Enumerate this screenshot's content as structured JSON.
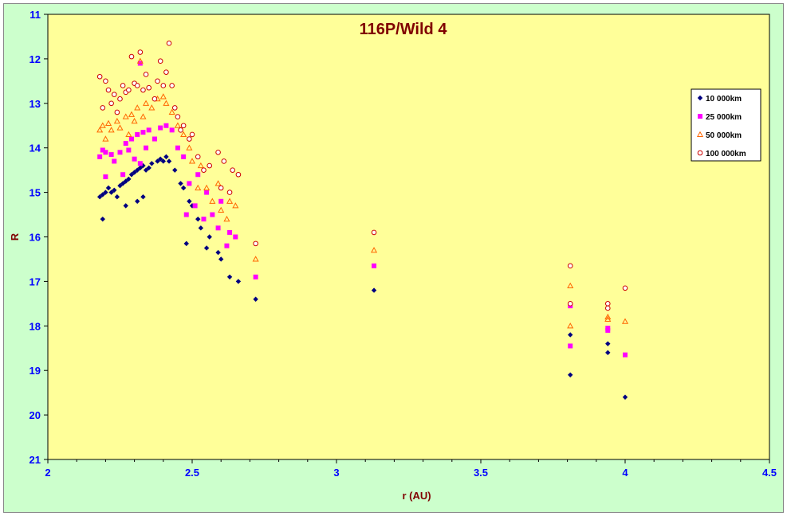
{
  "chart_data": {
    "type": "scatter",
    "title": "116P/Wild 4",
    "xlabel": "r (AU)",
    "ylabel": "R",
    "xlim": [
      2,
      4.5
    ],
    "ylim": [
      11,
      21
    ],
    "y_inverted": true,
    "x_ticks": [
      "2",
      "2.5",
      "3",
      "3.5",
      "4",
      "4.5"
    ],
    "y_ticks": [
      "11",
      "12",
      "13",
      "14",
      "15",
      "16",
      "17",
      "18",
      "19",
      "20",
      "21"
    ],
    "grid": false,
    "legend_position": "right",
    "plot_background": "#ffff99",
    "outer_background": "#ccffcc",
    "series": [
      {
        "name": "10 000km",
        "marker": "diamond",
        "color": "#000080",
        "points": [
          [
            2.18,
            15.1
          ],
          [
            2.19,
            15.05
          ],
          [
            2.2,
            15.0
          ],
          [
            2.19,
            15.6
          ],
          [
            2.21,
            14.9
          ],
          [
            2.22,
            15.0
          ],
          [
            2.23,
            14.95
          ],
          [
            2.24,
            15.1
          ],
          [
            2.25,
            14.85
          ],
          [
            2.26,
            14.8
          ],
          [
            2.27,
            15.3
          ],
          [
            2.27,
            14.75
          ],
          [
            2.28,
            14.7
          ],
          [
            2.29,
            14.6
          ],
          [
            2.3,
            14.55
          ],
          [
            2.31,
            15.2
          ],
          [
            2.31,
            14.5
          ],
          [
            2.32,
            14.45
          ],
          [
            2.33,
            15.1
          ],
          [
            2.33,
            14.4
          ],
          [
            2.34,
            14.5
          ],
          [
            2.35,
            14.45
          ],
          [
            2.36,
            14.35
          ],
          [
            2.38,
            14.3
          ],
          [
            2.39,
            14.25
          ],
          [
            2.4,
            14.3
          ],
          [
            2.41,
            14.2
          ],
          [
            2.42,
            14.3
          ],
          [
            2.44,
            14.5
          ],
          [
            2.46,
            14.8
          ],
          [
            2.47,
            14.9
          ],
          [
            2.48,
            16.15
          ],
          [
            2.49,
            15.2
          ],
          [
            2.5,
            15.3
          ],
          [
            2.52,
            15.6
          ],
          [
            2.53,
            15.8
          ],
          [
            2.55,
            16.25
          ],
          [
            2.56,
            16.0
          ],
          [
            2.59,
            16.35
          ],
          [
            2.6,
            16.5
          ],
          [
            2.63,
            16.9
          ],
          [
            2.66,
            17.0
          ],
          [
            2.72,
            17.4
          ],
          [
            3.13,
            17.2
          ],
          [
            3.81,
            18.2
          ],
          [
            3.81,
            19.1
          ],
          [
            3.94,
            18.4
          ],
          [
            3.94,
            18.6
          ],
          [
            4.0,
            19.6
          ]
        ]
      },
      {
        "name": "25 000km",
        "marker": "square",
        "color": "#ff00ff",
        "points": [
          [
            2.18,
            14.2
          ],
          [
            2.19,
            14.05
          ],
          [
            2.2,
            14.65
          ],
          [
            2.2,
            14.1
          ],
          [
            2.22,
            14.15
          ],
          [
            2.23,
            14.3
          ],
          [
            2.25,
            14.1
          ],
          [
            2.26,
            14.6
          ],
          [
            2.27,
            13.9
          ],
          [
            2.28,
            14.05
          ],
          [
            2.29,
            13.8
          ],
          [
            2.3,
            14.25
          ],
          [
            2.31,
            13.7
          ],
          [
            2.32,
            14.35
          ],
          [
            2.33,
            13.65
          ],
          [
            2.34,
            14.0
          ],
          [
            2.35,
            13.6
          ],
          [
            2.37,
            13.8
          ],
          [
            2.39,
            13.55
          ],
          [
            2.41,
            13.5
          ],
          [
            2.43,
            13.6
          ],
          [
            2.45,
            14.0
          ],
          [
            2.47,
            14.2
          ],
          [
            2.48,
            15.5
          ],
          [
            2.49,
            14.8
          ],
          [
            2.51,
            15.3
          ],
          [
            2.52,
            14.6
          ],
          [
            2.54,
            15.6
          ],
          [
            2.55,
            15.0
          ],
          [
            2.57,
            15.5
          ],
          [
            2.59,
            15.8
          ],
          [
            2.6,
            15.2
          ],
          [
            2.62,
            16.2
          ],
          [
            2.63,
            15.9
          ],
          [
            2.65,
            16.0
          ],
          [
            2.72,
            16.9
          ],
          [
            3.13,
            16.65
          ],
          [
            3.81,
            17.55
          ],
          [
            3.81,
            18.45
          ],
          [
            3.94,
            18.05
          ],
          [
            3.94,
            18.1
          ],
          [
            4.0,
            18.65
          ],
          [
            2.32,
            12.1
          ]
        ]
      },
      {
        "name": "50 000km",
        "marker": "triangle",
        "color": "#ff6600",
        "points": [
          [
            2.18,
            13.6
          ],
          [
            2.19,
            13.5
          ],
          [
            2.2,
            13.8
          ],
          [
            2.21,
            13.45
          ],
          [
            2.22,
            13.6
          ],
          [
            2.24,
            13.4
          ],
          [
            2.25,
            13.55
          ],
          [
            2.27,
            13.3
          ],
          [
            2.28,
            13.7
          ],
          [
            2.29,
            13.25
          ],
          [
            2.3,
            13.4
          ],
          [
            2.31,
            13.1
          ],
          [
            2.32,
            12.05
          ],
          [
            2.33,
            13.3
          ],
          [
            2.34,
            13.0
          ],
          [
            2.36,
            13.1
          ],
          [
            2.38,
            12.9
          ],
          [
            2.4,
            12.85
          ],
          [
            2.41,
            13.0
          ],
          [
            2.43,
            13.2
          ],
          [
            2.45,
            13.5
          ],
          [
            2.47,
            13.7
          ],
          [
            2.49,
            14.0
          ],
          [
            2.5,
            14.3
          ],
          [
            2.52,
            14.9
          ],
          [
            2.53,
            14.4
          ],
          [
            2.55,
            14.9
          ],
          [
            2.57,
            15.2
          ],
          [
            2.59,
            14.8
          ],
          [
            2.6,
            15.4
          ],
          [
            2.62,
            15.6
          ],
          [
            2.63,
            15.2
          ],
          [
            2.65,
            15.3
          ],
          [
            2.72,
            16.5
          ],
          [
            3.13,
            16.3
          ],
          [
            3.81,
            17.1
          ],
          [
            3.81,
            18.0
          ],
          [
            3.94,
            17.8
          ],
          [
            3.94,
            17.85
          ],
          [
            4.0,
            17.9
          ]
        ]
      },
      {
        "name": "100 000km",
        "marker": "circle",
        "color": "#cc0000",
        "points": [
          [
            2.18,
            12.4
          ],
          [
            2.19,
            13.1
          ],
          [
            2.2,
            12.5
          ],
          [
            2.21,
            12.7
          ],
          [
            2.22,
            13.0
          ],
          [
            2.23,
            12.8
          ],
          [
            2.24,
            13.2
          ],
          [
            2.25,
            12.9
          ],
          [
            2.26,
            12.6
          ],
          [
            2.27,
            12.75
          ],
          [
            2.28,
            12.7
          ],
          [
            2.29,
            11.95
          ],
          [
            2.3,
            12.55
          ],
          [
            2.31,
            12.6
          ],
          [
            2.32,
            11.85
          ],
          [
            2.33,
            12.7
          ],
          [
            2.34,
            12.35
          ],
          [
            2.35,
            12.65
          ],
          [
            2.37,
            12.9
          ],
          [
            2.38,
            12.5
          ],
          [
            2.39,
            12.05
          ],
          [
            2.4,
            12.6
          ],
          [
            2.41,
            12.3
          ],
          [
            2.42,
            11.65
          ],
          [
            2.43,
            12.6
          ],
          [
            2.44,
            13.1
          ],
          [
            2.45,
            13.3
          ],
          [
            2.46,
            13.6
          ],
          [
            2.47,
            13.5
          ],
          [
            2.49,
            13.8
          ],
          [
            2.5,
            13.7
          ],
          [
            2.52,
            14.2
          ],
          [
            2.54,
            14.5
          ],
          [
            2.56,
            14.4
          ],
          [
            2.59,
            14.1
          ],
          [
            2.6,
            14.9
          ],
          [
            2.61,
            14.3
          ],
          [
            2.63,
            15.0
          ],
          [
            2.64,
            14.5
          ],
          [
            2.66,
            14.6
          ],
          [
            2.72,
            16.15
          ],
          [
            3.13,
            15.9
          ],
          [
            3.81,
            16.65
          ],
          [
            3.81,
            17.5
          ],
          [
            3.94,
            17.5
          ],
          [
            3.94,
            17.6
          ],
          [
            4.0,
            17.15
          ]
        ]
      }
    ]
  }
}
